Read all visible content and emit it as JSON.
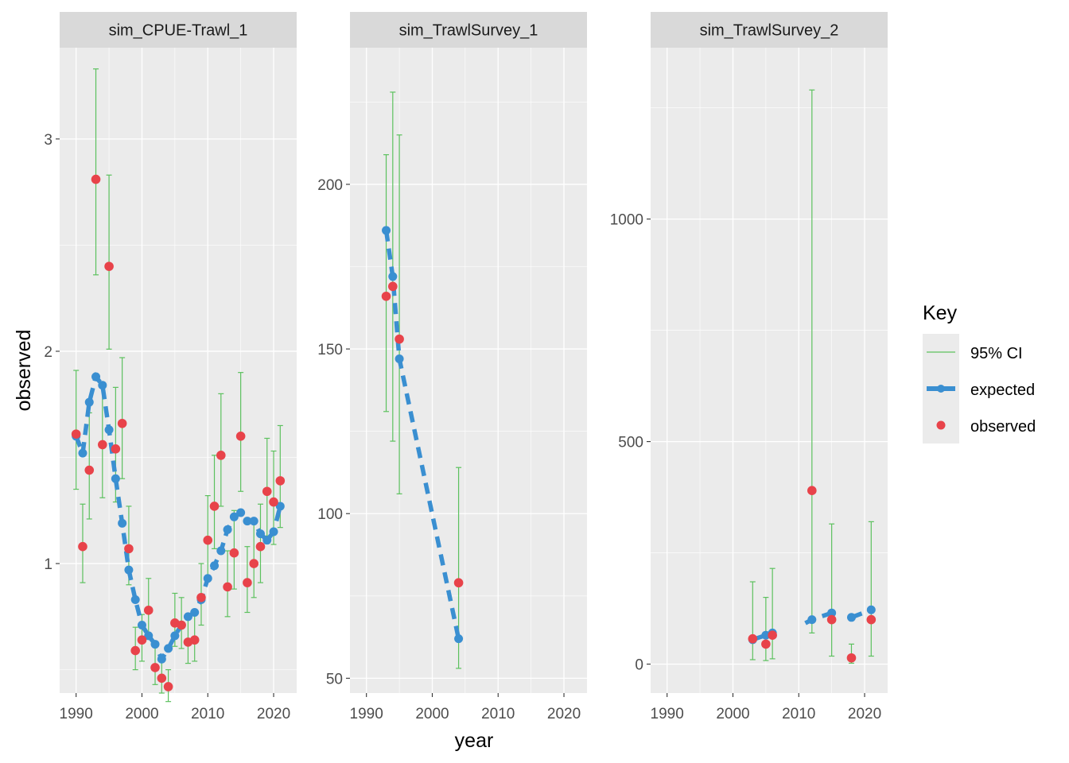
{
  "chart_data": {
    "type": "line",
    "x_label": "year",
    "y_label": "observed",
    "legend": {
      "title": "Key",
      "entries": [
        "95% CI",
        "expected",
        "observed"
      ],
      "placement": "right"
    },
    "colors": {
      "ci": "#5cc15e",
      "expected": "#3a8fd1",
      "observed": "#e8434a",
      "panel_background": "#ebebeb",
      "strip_background": "#d9d9d9",
      "grid": "#ffffff"
    },
    "x_range": [
      1987.5,
      2023.5
    ],
    "x_ticks": [
      1990,
      2000,
      2010,
      2020
    ],
    "x_tick_labels": [
      "1990",
      "2000",
      "2010",
      "2020"
    ],
    "panels": [
      {
        "title": "sim_CPUE-Trawl_1",
        "y_range": [
          0.39,
          3.43
        ],
        "y_ticks": [
          1,
          2,
          3
        ],
        "y_tick_labels": [
          "1",
          "2",
          "3"
        ],
        "years": [
          1990,
          1991,
          1992,
          1993,
          1994,
          1995,
          1996,
          1997,
          1998,
          1999,
          2000,
          2001,
          2002,
          2003,
          2004,
          2005,
          2006,
          2007,
          2008,
          2009,
          2010,
          2011,
          2012,
          2013,
          2014,
          2015,
          2016,
          2017,
          2018,
          2019,
          2020,
          2021
        ],
        "observed": [
          1.61,
          1.08,
          1.44,
          2.81,
          1.56,
          2.4,
          1.54,
          1.66,
          1.07,
          0.59,
          0.64,
          0.78,
          0.51,
          0.46,
          0.42,
          0.72,
          0.71,
          0.63,
          0.64,
          0.84,
          1.11,
          1.27,
          1.51,
          0.89,
          1.05,
          1.6,
          0.91,
          1.0,
          1.08,
          1.34,
          1.29,
          1.39
        ],
        "expected": [
          1.6,
          1.52,
          1.76,
          1.88,
          1.84,
          1.63,
          1.4,
          1.19,
          0.97,
          0.83,
          0.71,
          0.66,
          0.62,
          0.55,
          0.6,
          0.66,
          0.71,
          0.75,
          0.77,
          0.83,
          0.93,
          0.99,
          1.06,
          1.16,
          1.22,
          1.24,
          1.2,
          1.2,
          1.14,
          1.11,
          1.15,
          1.27
        ],
        "ci_lower": [
          1.35,
          0.91,
          1.21,
          2.36,
          1.31,
          2.01,
          1.29,
          1.4,
          0.9,
          0.5,
          0.54,
          0.66,
          0.43,
          0.39,
          0.35,
          0.61,
          0.6,
          0.53,
          0.54,
          0.71,
          0.93,
          1.07,
          1.27,
          0.75,
          0.88,
          1.34,
          0.77,
          0.84,
          0.91,
          1.13,
          1.09,
          1.17
        ],
        "ci_upper": [
          1.91,
          1.28,
          1.71,
          3.33,
          1.85,
          2.83,
          1.83,
          1.97,
          1.27,
          0.7,
          0.76,
          0.93,
          0.61,
          0.55,
          0.5,
          0.86,
          0.84,
          0.75,
          0.76,
          1.0,
          1.32,
          1.51,
          1.8,
          1.06,
          1.25,
          1.9,
          1.08,
          1.19,
          1.28,
          1.59,
          1.53,
          1.65
        ]
      },
      {
        "title": "sim_TrawlSurvey_1",
        "y_range": [
          45.5,
          241.5
        ],
        "y_ticks": [
          50,
          100,
          150,
          200
        ],
        "y_tick_labels": [
          "50",
          "100",
          "150",
          "200"
        ],
        "years": [
          1993,
          1994,
          1995,
          2004
        ],
        "observed": [
          166,
          169,
          153,
          79
        ],
        "expected": [
          186,
          172,
          147,
          62
        ],
        "ci_lower": [
          131,
          122,
          106,
          53
        ],
        "ci_upper": [
          209,
          228,
          215,
          114
        ],
        "expected_line_gap_after_year": 2004
      },
      {
        "title": "sim_TrawlSurvey_2",
        "y_range": [
          -65,
          1385
        ],
        "y_ticks": [
          0,
          500,
          1000
        ],
        "y_tick_labels": [
          "0",
          "500",
          "1000"
        ],
        "years": [
          2003,
          2005,
          2006,
          2012,
          2015,
          2018,
          2021
        ],
        "observed": [
          57,
          45,
          65,
          390,
          100,
          14,
          100
        ],
        "expected": [
          55,
          65,
          70,
          100,
          115,
          105,
          122
        ],
        "ci_lower": [
          10,
          8,
          12,
          70,
          18,
          2,
          18
        ],
        "ci_upper": [
          185,
          150,
          215,
          1290,
          315,
          45,
          320
        ],
        "expected_line_breaks": [
          [
            2003,
            2006
          ],
          [
            2011,
            2015
          ],
          [
            2018,
            2021
          ]
        ]
      }
    ]
  }
}
